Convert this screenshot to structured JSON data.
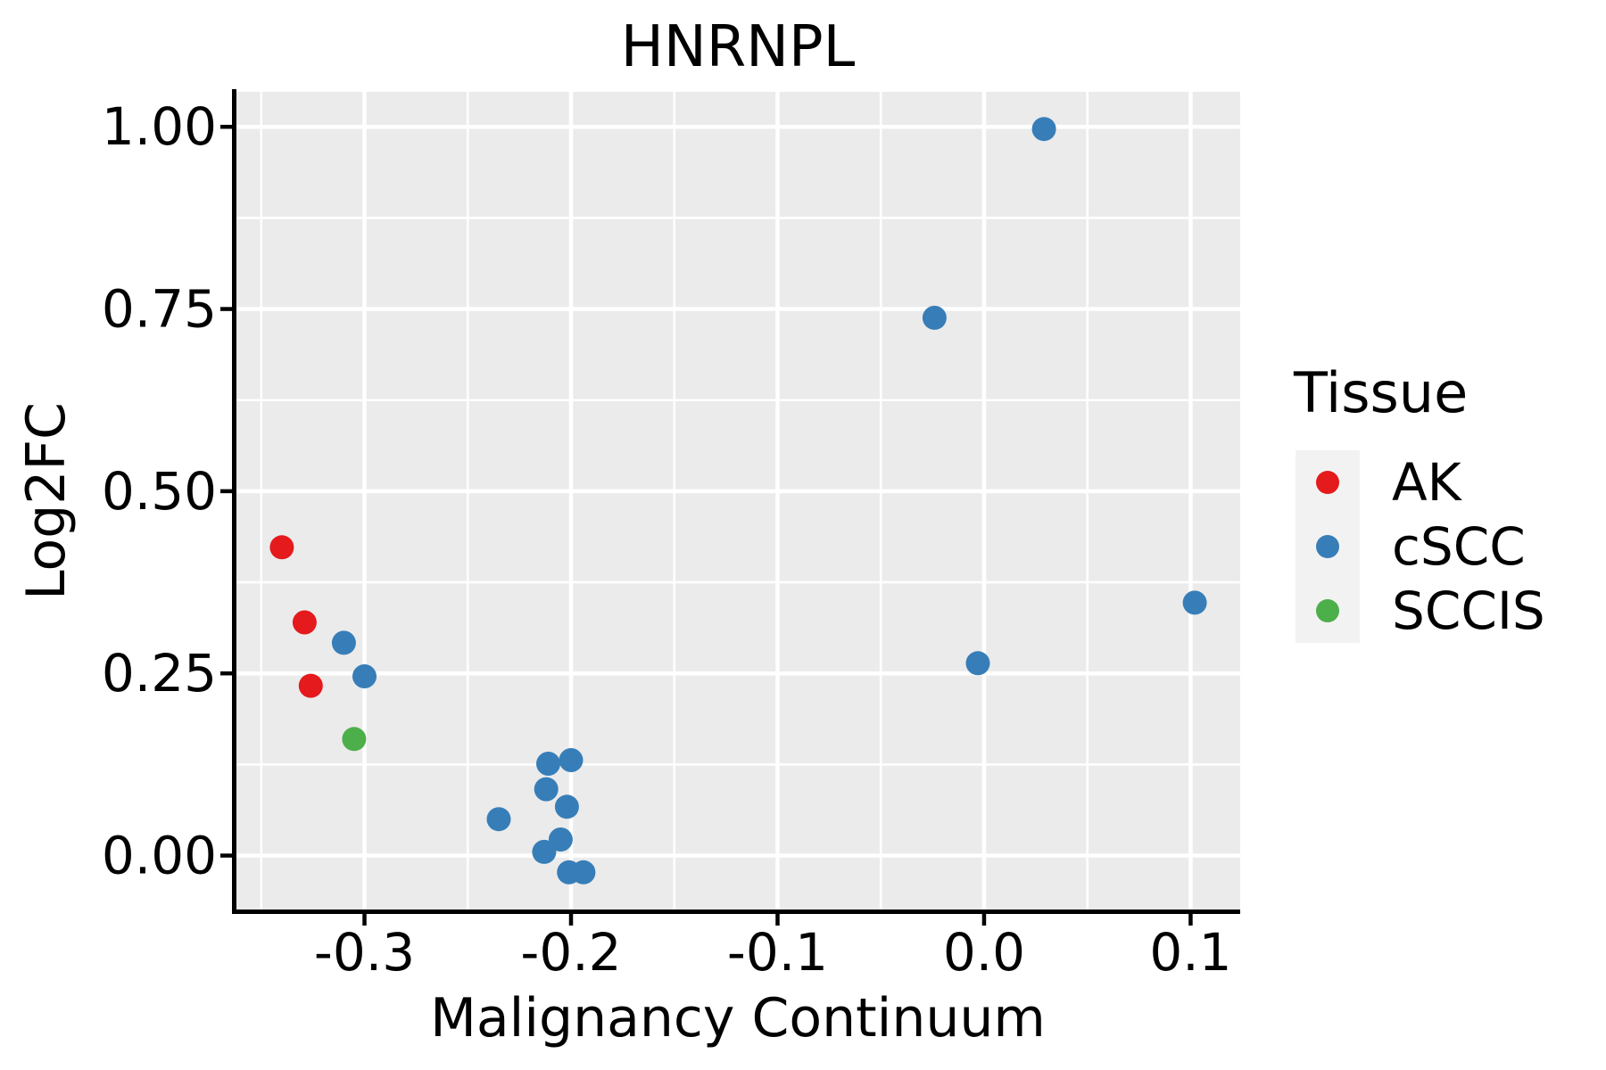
{
  "title": "HNRNPL",
  "x_axis": {
    "label": "Malignancy Continuum",
    "tick_labels": [
      "-0.3",
      "-0.2",
      "-0.1",
      "0.0",
      "0.1"
    ],
    "tick_values": [
      -0.3,
      -0.2,
      -0.1,
      0.0,
      0.1
    ],
    "minor_tick_values": [
      -0.35,
      -0.25,
      -0.15,
      -0.05,
      0.05
    ],
    "range": [
      -0.362,
      0.124
    ]
  },
  "y_axis": {
    "label": "Log2FC",
    "tick_labels": [
      "0.00",
      "0.25",
      "0.50",
      "0.75",
      "1.00"
    ],
    "tick_values": [
      0.0,
      0.25,
      0.5,
      0.75,
      1.0
    ],
    "minor_tick_values": [
      0.125,
      0.375,
      0.625,
      0.875
    ],
    "range": [
      -0.074,
      1.048
    ]
  },
  "legend": {
    "title": "Tissue",
    "items": [
      {
        "label": "AK",
        "color": "#e41a1c"
      },
      {
        "label": "cSCC",
        "color": "#377eb8"
      },
      {
        "label": "SCCIS",
        "color": "#4daf4a"
      }
    ]
  },
  "style": {
    "panel_background": "#ebebeb",
    "grid_color": "#ffffff",
    "axis_color": "#000000",
    "text_color": "#000000",
    "legend_key_background": "#f2f2f2",
    "point_radius": 13.5,
    "legend_point_radius": 13
  },
  "chart_data": {
    "type": "scatter",
    "title": "HNRNPL",
    "xlabel": "Malignancy Continuum",
    "ylabel": "Log2FC",
    "xlim": [
      -0.362,
      0.124
    ],
    "ylim": [
      -0.074,
      1.048
    ],
    "grid": "major+minor",
    "legend_position": "right",
    "legend_title": "Tissue",
    "series": [
      {
        "name": "AK",
        "color": "#e41a1c",
        "points": [
          [
            -0.34,
            0.423
          ],
          [
            -0.329,
            0.32
          ],
          [
            -0.326,
            0.233
          ]
        ]
      },
      {
        "name": "cSCC",
        "color": "#377eb8",
        "points": [
          [
            -0.31,
            0.292
          ],
          [
            -0.3,
            0.246
          ],
          [
            -0.235,
            0.05
          ],
          [
            -0.211,
            0.126
          ],
          [
            -0.2,
            0.131
          ],
          [
            -0.212,
            0.091
          ],
          [
            -0.202,
            0.067
          ],
          [
            -0.205,
            0.022
          ],
          [
            -0.213,
            0.005
          ],
          [
            -0.201,
            -0.023
          ],
          [
            -0.194,
            -0.023
          ],
          [
            -0.024,
            0.738
          ],
          [
            0.029,
            0.997
          ],
          [
            -0.003,
            0.264
          ],
          [
            0.102,
            0.347
          ]
        ]
      },
      {
        "name": "SCCIS",
        "color": "#4daf4a",
        "points": [
          [
            -0.305,
            0.16
          ]
        ]
      }
    ]
  }
}
